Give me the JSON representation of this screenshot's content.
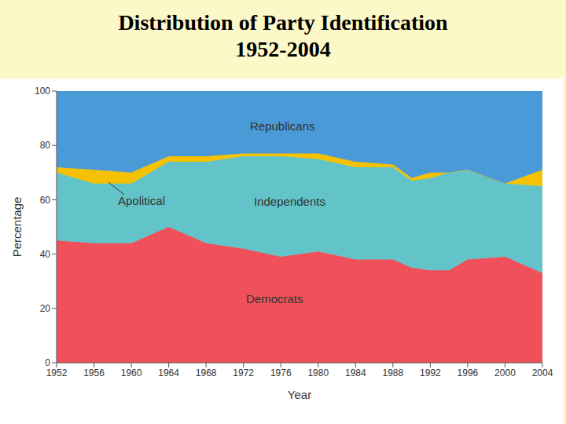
{
  "chart_data": {
    "type": "area",
    "title": "Distribution of Party Identification",
    "subtitle": "1952-2004",
    "xlabel": "Year",
    "ylabel": "Percentage",
    "stacked": true,
    "x": [
      1952,
      1956,
      1960,
      1964,
      1968,
      1972,
      1976,
      1980,
      1984,
      1988,
      1990,
      1992,
      1994,
      1996,
      2000,
      2004
    ],
    "series": [
      {
        "name": "Democrats",
        "color": "#ef5059",
        "values": [
          45,
          44,
          44,
          50,
          44,
          42,
          39,
          41,
          38,
          38,
          35,
          34,
          34,
          38,
          39,
          33
        ]
      },
      {
        "name": "Independents",
        "color": "#62c4c8",
        "values": [
          25,
          22,
          22,
          24,
          30,
          34,
          37,
          34,
          34,
          34,
          32,
          34,
          36,
          33,
          27,
          32
        ]
      },
      {
        "name": "Apolitical",
        "color": "#f6c100",
        "values": [
          2,
          5,
          4,
          2,
          2,
          1,
          1,
          2,
          2,
          1,
          1,
          2,
          0,
          0,
          0,
          6
        ]
      },
      {
        "name": "Republicans",
        "color": "#4a9ad8",
        "values": [
          28,
          29,
          30,
          24,
          24,
          23,
          23,
          23,
          26,
          27,
          32,
          30,
          30,
          29,
          34,
          29
        ]
      }
    ],
    "xlim": [
      1952,
      2004
    ],
    "xticks": [
      1952,
      1956,
      1960,
      1964,
      1968,
      1972,
      1976,
      1980,
      1984,
      1988,
      1992,
      1996,
      2000,
      2004
    ],
    "ylim": [
      0,
      100
    ],
    "yticks": [
      0,
      20,
      40,
      60,
      80,
      100
    ]
  }
}
